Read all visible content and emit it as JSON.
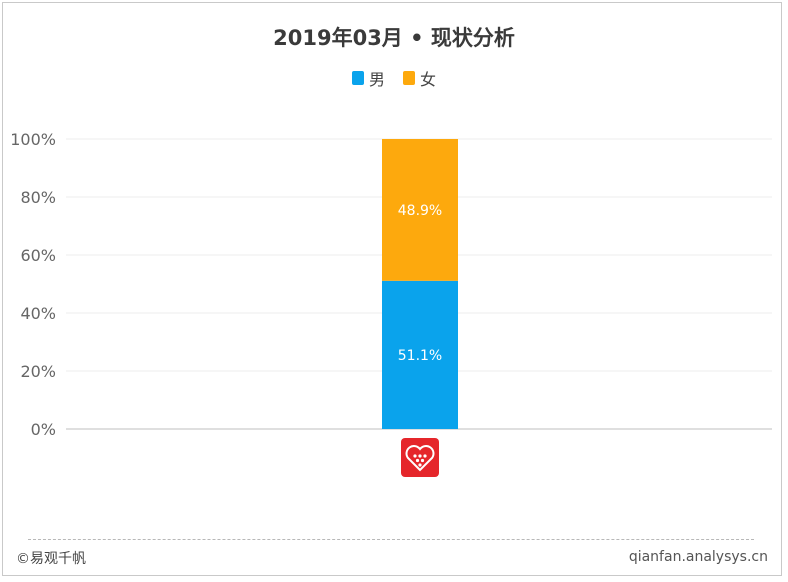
{
  "chart_data": {
    "type": "bar",
    "stacked": true,
    "title": "2019年03月 • 现状分析",
    "categories": [
      ""
    ],
    "series": [
      {
        "name": "男",
        "values": [
          51.1
        ],
        "color": "#0aa3ec",
        "label": "51.1%"
      },
      {
        "name": "女",
        "values": [
          48.9
        ],
        "color": "#fda90d",
        "label": "48.9%"
      }
    ],
    "y_ticks": [
      "0%",
      "20%",
      "40%",
      "60%",
      "80%",
      "100%"
    ],
    "ylim": [
      0,
      100
    ],
    "legend_position": "top-center",
    "grid": true
  },
  "category_icon": "pinduoduo-logo-icon",
  "footer": {
    "left": "©易观千帆",
    "right": "qianfan.analysys.cn"
  }
}
